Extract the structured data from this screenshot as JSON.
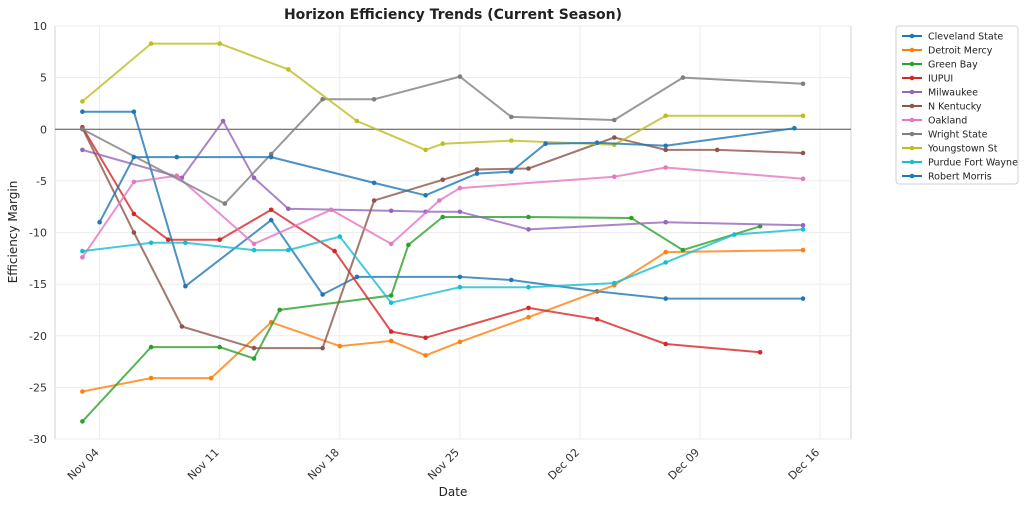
{
  "chart_data": {
    "type": "line",
    "title": "Horizon Efficiency Trends (Current Season)",
    "xlabel": "Date",
    "ylabel": "Efficiency Margin",
    "xlim": [
      -2.6,
      43.8
    ],
    "ylim": [
      -30,
      10
    ],
    "x_ticks": [
      {
        "day": 0,
        "label": "Nov 04"
      },
      {
        "day": 7,
        "label": "Nov 11"
      },
      {
        "day": 14,
        "label": "Nov 18"
      },
      {
        "day": 21,
        "label": "Nov 25"
      },
      {
        "day": 28,
        "label": "Dec 02"
      },
      {
        "day": 35,
        "label": "Dec 09"
      },
      {
        "day": 42,
        "label": "Dec 16"
      }
    ],
    "y_ticks": [
      10,
      5,
      0,
      -5,
      -10,
      -15,
      -20,
      -25,
      -30
    ],
    "x_unit": "days since Nov 04",
    "grid": true,
    "zero_line": true,
    "legend_position": "outside-right",
    "series": [
      {
        "name": "Cleveland State",
        "color": "#1f77b4",
        "points": [
          [
            -1,
            1.7
          ],
          [
            2,
            1.7
          ],
          [
            5,
            -15.2
          ],
          [
            10,
            -8.8
          ],
          [
            13,
            -16.0
          ],
          [
            15,
            -14.3
          ],
          [
            21,
            -14.3
          ],
          [
            24,
            -14.6
          ],
          [
            29,
            -15.7
          ],
          [
            33,
            -16.4
          ],
          [
            41,
            -16.4
          ]
        ]
      },
      {
        "name": "Detroit Mercy",
        "color": "#ff7f0e",
        "points": [
          [
            -1,
            -25.4
          ],
          [
            3,
            -24.1
          ],
          [
            6.5,
            -24.1
          ],
          [
            10,
            -18.7
          ],
          [
            14,
            -21.0
          ],
          [
            17,
            -20.5
          ],
          [
            19,
            -21.9
          ],
          [
            21,
            -20.6
          ],
          [
            25,
            -18.2
          ],
          [
            30,
            -15.1
          ],
          [
            33,
            -11.9
          ],
          [
            41,
            -11.7
          ]
        ]
      },
      {
        "name": "Green Bay",
        "color": "#2ca02c",
        "points": [
          [
            -1,
            -28.3
          ],
          [
            3,
            -21.1
          ],
          [
            7,
            -21.1
          ],
          [
            9,
            -22.2
          ],
          [
            10.5,
            -17.5
          ],
          [
            17,
            -16.1
          ],
          [
            18,
            -11.2
          ],
          [
            20,
            -8.5
          ],
          [
            25,
            -8.5
          ],
          [
            31,
            -8.6
          ],
          [
            34,
            -11.7
          ],
          [
            38.5,
            -9.4
          ]
        ]
      },
      {
        "name": "IUPUI",
        "color": "#d62728",
        "points": [
          [
            -1,
            0.2
          ],
          [
            2,
            -8.2
          ],
          [
            4,
            -10.7
          ],
          [
            7,
            -10.7
          ],
          [
            10,
            -7.8
          ],
          [
            13.7,
            -11.8
          ],
          [
            17,
            -19.6
          ],
          [
            19,
            -20.2
          ],
          [
            25,
            -17.3
          ],
          [
            29,
            -18.4
          ],
          [
            33,
            -20.8
          ],
          [
            38.5,
            -21.6
          ]
        ]
      },
      {
        "name": "Milwaukee",
        "color": "#9467bd",
        "points": [
          [
            -1,
            -2.0
          ],
          [
            4.8,
            -4.7
          ],
          [
            7.2,
            0.8
          ],
          [
            9,
            -4.7
          ],
          [
            11,
            -7.7
          ],
          [
            17,
            -7.9
          ],
          [
            19,
            -8.0
          ],
          [
            21,
            -8.0
          ],
          [
            25,
            -9.7
          ],
          [
            33,
            -9.0
          ],
          [
            41,
            -9.3
          ]
        ]
      },
      {
        "name": "N Kentucky",
        "color": "#8c564b",
        "points": [
          [
            -1,
            0.1
          ],
          [
            2,
            -10.0
          ],
          [
            4.8,
            -19.1
          ],
          [
            9,
            -21.2
          ],
          [
            13,
            -21.2
          ],
          [
            16,
            -6.9
          ],
          [
            20,
            -4.9
          ],
          [
            22,
            -3.9
          ],
          [
            25,
            -3.8
          ],
          [
            30,
            -0.8
          ],
          [
            33,
            -2.0
          ],
          [
            36,
            -2.0
          ],
          [
            41,
            -2.3
          ]
        ]
      },
      {
        "name": "Oakland",
        "color": "#e377c2",
        "points": [
          [
            -1,
            -12.4
          ],
          [
            2,
            -5.1
          ],
          [
            4.5,
            -4.5
          ],
          [
            9,
            -11.1
          ],
          [
            13.5,
            -7.8
          ],
          [
            17,
            -11.1
          ],
          [
            19.8,
            -6.9
          ],
          [
            21,
            -5.7
          ],
          [
            30,
            -4.6
          ],
          [
            33,
            -3.7
          ],
          [
            41,
            -4.8
          ]
        ]
      },
      {
        "name": "Wright State",
        "color": "#7f7f7f",
        "points": [
          [
            -1,
            0.0
          ],
          [
            7.3,
            -7.2
          ],
          [
            10,
            -2.4
          ],
          [
            13,
            2.9
          ],
          [
            16,
            2.9
          ],
          [
            21,
            5.1
          ],
          [
            24,
            1.2
          ],
          [
            30,
            0.9
          ],
          [
            34,
            5.0
          ],
          [
            41,
            4.4
          ]
        ]
      },
      {
        "name": "Youngstown St",
        "color": "#bcbd22",
        "points": [
          [
            -1,
            2.7
          ],
          [
            3,
            8.3
          ],
          [
            7,
            8.3
          ],
          [
            11,
            5.8
          ],
          [
            15,
            0.8
          ],
          [
            19,
            -2.0
          ],
          [
            20,
            -1.4
          ],
          [
            24,
            -1.1
          ],
          [
            30,
            -1.5
          ],
          [
            33,
            1.3
          ],
          [
            41,
            1.3
          ]
        ]
      },
      {
        "name": "Purdue Fort Wayne",
        "color": "#17becf",
        "points": [
          [
            -1,
            -11.8
          ],
          [
            3,
            -11.0
          ],
          [
            5,
            -11.0
          ],
          [
            9,
            -11.7
          ],
          [
            11,
            -11.7
          ],
          [
            14,
            -10.4
          ],
          [
            17,
            -16.8
          ],
          [
            21,
            -15.3
          ],
          [
            25,
            -15.3
          ],
          [
            30,
            -14.9
          ],
          [
            33,
            -12.9
          ],
          [
            37,
            -10.2
          ],
          [
            41,
            -9.7
          ]
        ]
      },
      {
        "name": "Robert Morris",
        "color": "#1f77b4",
        "points": [
          [
            0,
            -9.0
          ],
          [
            2,
            -2.7
          ],
          [
            4.5,
            -2.7
          ],
          [
            10,
            -2.7
          ],
          [
            16,
            -5.2
          ],
          [
            19,
            -6.4
          ],
          [
            22,
            -4.3
          ],
          [
            24,
            -4.1
          ],
          [
            26,
            -1.4
          ],
          [
            29,
            -1.3
          ],
          [
            33,
            -1.6
          ],
          [
            40.5,
            0.1
          ]
        ]
      }
    ]
  }
}
